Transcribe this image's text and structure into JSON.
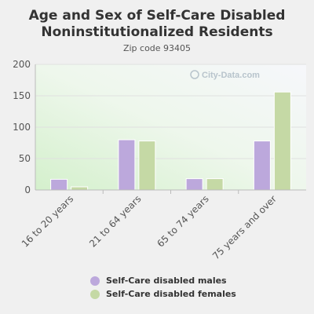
{
  "title_line1": "Age and Sex of Self-Care Disabled",
  "title_line2": "Noninstitutionalized Residents",
  "subtitle": "Zip code 93405",
  "watermark": "City-Data.com",
  "colors": {
    "males": "#bca8dc",
    "females": "#c5d9a5",
    "grid": "#e0e0e0",
    "axis": "#bbbbbb",
    "tick_text": "#555555"
  },
  "chart_data": {
    "type": "bar",
    "categories": [
      "16 to 20 years",
      "21 to 64 years",
      "65 to 74 years",
      "75 years and over"
    ],
    "series": [
      {
        "name": "Self-Care disabled males",
        "values": [
          17,
          80,
          18,
          78
        ]
      },
      {
        "name": "Self-Care disabled females",
        "values": [
          5,
          78,
          18,
          156
        ]
      }
    ],
    "ylim": [
      0,
      200
    ],
    "yticks": [
      0,
      50,
      100,
      150,
      200
    ],
    "grid": true,
    "legend": "bottom"
  }
}
